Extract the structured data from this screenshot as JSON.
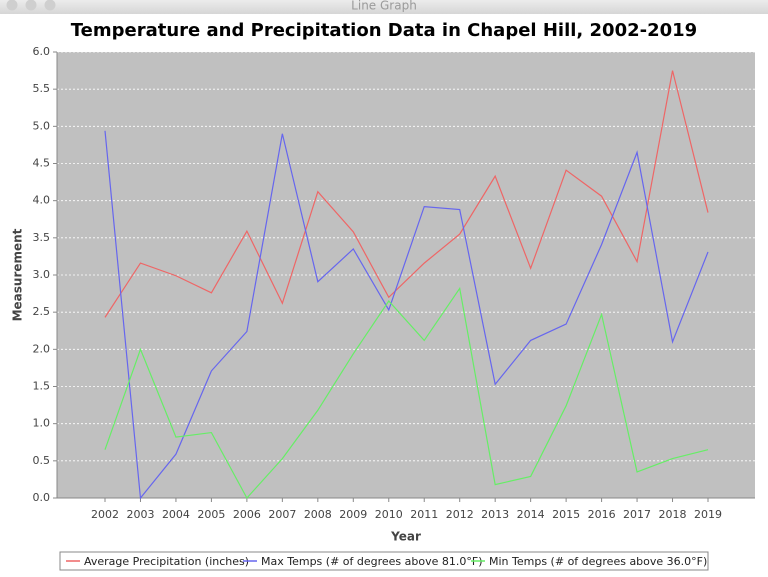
{
  "window": {
    "title": "Line Graph"
  },
  "chart_data": {
    "type": "line",
    "title": "Temperature and Precipitation Data in Chapel Hill, 2002-2019",
    "x_label": "Year",
    "y_label": "Measurement",
    "categories": [
      "2002",
      "2003",
      "2004",
      "2005",
      "2006",
      "2007",
      "2008",
      "2009",
      "2010",
      "2011",
      "2012",
      "2013",
      "2014",
      "2015",
      "2016",
      "2017",
      "2018",
      "2019"
    ],
    "series": [
      {
        "name": "Average Precipitation (inches)",
        "color": "#ee6666",
        "values": [
          2.43,
          3.16,
          2.99,
          2.76,
          3.59,
          2.62,
          4.12,
          3.58,
          2.7,
          3.16,
          3.55,
          4.33,
          3.09,
          4.41,
          4.06,
          3.18,
          5.75,
          3.84
        ]
      },
      {
        "name": "Max Temps (# of degrees above 81.0°F)",
        "color": "#6666ee",
        "values": [
          4.94,
          0.0,
          0.59,
          1.71,
          2.24,
          4.9,
          2.91,
          3.35,
          2.53,
          3.92,
          3.88,
          1.53,
          2.12,
          2.34,
          3.41,
          4.65,
          2.1,
          3.31
        ]
      },
      {
        "name": "Min Temps (# of degrees above 36.0°F)",
        "color": "#66ee66",
        "values": [
          0.65,
          2.0,
          0.82,
          0.88,
          0.0,
          0.53,
          1.18,
          1.94,
          2.65,
          2.12,
          2.82,
          0.18,
          0.29,
          1.24,
          2.47,
          0.35,
          0.53,
          0.65
        ]
      }
    ],
    "ylim": [
      0,
      6
    ],
    "yticks": [
      {
        "value": 0,
        "label": "0.0"
      },
      {
        "value": 0.5,
        "label": "0.5"
      },
      {
        "value": 1,
        "label": "1.0"
      },
      {
        "value": 1.5,
        "label": "1.5"
      },
      {
        "value": 2,
        "label": "2.0"
      },
      {
        "value": 2.5,
        "label": "2.5"
      },
      {
        "value": 3,
        "label": "3.0"
      },
      {
        "value": 3.5,
        "label": "3.5"
      },
      {
        "value": 4,
        "label": "4.0"
      },
      {
        "value": 4.5,
        "label": "4.5"
      },
      {
        "value": 5,
        "label": "5.0"
      },
      {
        "value": 5.5,
        "label": "5.5"
      },
      {
        "value": 6,
        "label": "6.0"
      }
    ],
    "grid": true,
    "legend": "bottom"
  }
}
